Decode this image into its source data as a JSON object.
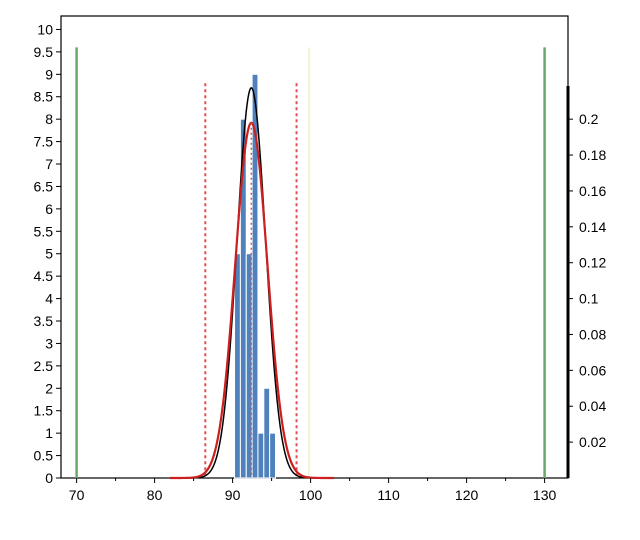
{
  "chart_data": {
    "type": "bar",
    "title": "",
    "xlabel": "",
    "ylabel": "",
    "xlim": [
      68,
      133
    ],
    "ylim": [
      0,
      10.3
    ],
    "y2lim": [
      0,
      0.2575
    ],
    "grid": false,
    "legend": "none",
    "x_ticks": [
      70,
      80,
      90,
      100,
      110,
      120,
      130
    ],
    "x_tick_labels": [
      "70",
      "80",
      "90",
      "100",
      "110",
      "120",
      "130"
    ],
    "y_ticks": [
      0,
      0.5,
      1,
      1.5,
      2,
      2.5,
      3,
      3.5,
      4,
      4.5,
      5,
      5.5,
      6,
      6.5,
      7,
      7.5,
      8,
      8.5,
      9,
      9.5,
      10
    ],
    "y_tick_labels": [
      "0",
      "0.5",
      "1",
      "1.5",
      "2",
      "2.5",
      "3",
      "3.5",
      "4",
      "4.5",
      "5",
      "5.5",
      "6",
      "6.5",
      "7",
      "7.5",
      "8",
      "8.5",
      "9",
      "9.5",
      "10"
    ],
    "y2_ticks": [
      0.02,
      0.04,
      0.06,
      0.08,
      0.1,
      0.12,
      0.14,
      0.16,
      0.18,
      0.2
    ],
    "y2_tick_labels": [
      "0.02",
      "0.04",
      "0.06",
      "0.08",
      "0.1",
      "0.12",
      "0.14",
      "0.16",
      "0.18",
      "0.2"
    ],
    "histogram": {
      "bin_width": 0.75,
      "bin_left_edges": [
        90.25,
        91.0,
        91.75,
        92.5,
        93.25,
        94.0,
        94.75
      ],
      "counts": [
        5,
        8,
        5,
        9,
        1,
        2,
        1
      ],
      "color": "#4f81bd",
      "edge_color": "#ffffff"
    },
    "spec_limits": {
      "lower": 70,
      "upper": 130,
      "color": "#6aa86a"
    },
    "control_limits": {
      "lower": 86.5,
      "upper": 98.2,
      "center": 92.4,
      "color": "#e05050"
    },
    "target_line": {
      "x": 99.8,
      "color": "#f2f0c8"
    },
    "curves": {
      "black_fit": {
        "mean": 92.4,
        "sd": 1.84,
        "peak_value": 0.2175,
        "color": "#000000"
      },
      "red_fit": {
        "mean": 92.4,
        "sd": 2.05,
        "peak_value": 0.198,
        "color": "#cc1f1f"
      }
    },
    "colors": {
      "axis": "#000000",
      "background": "#ffffff"
    }
  }
}
